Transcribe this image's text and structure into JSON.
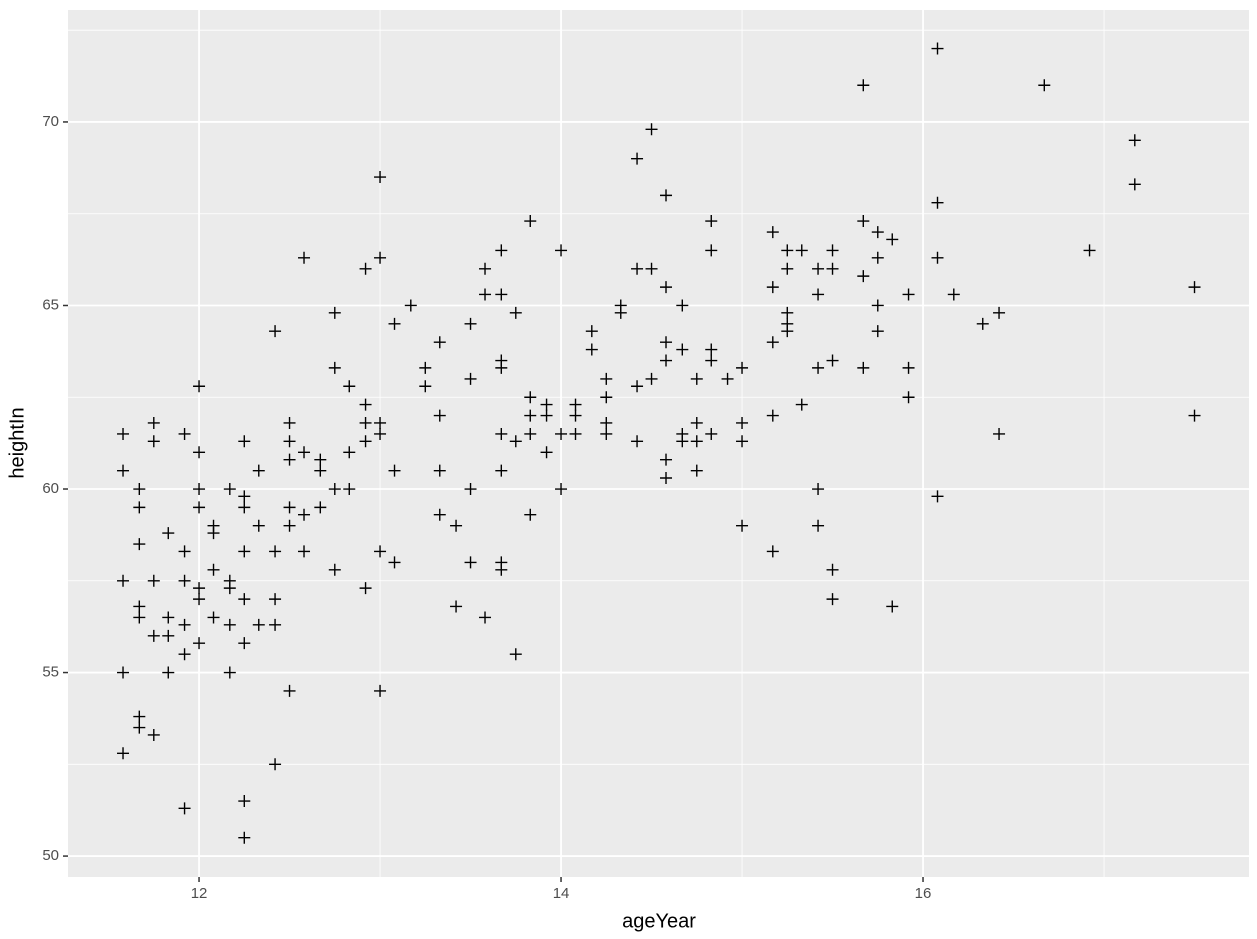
{
  "chart_data": {
    "type": "scatter",
    "x_label": "ageYear",
    "y_label": "heightIn",
    "x": [
      11.58,
      11.58,
      11.58,
      11.58,
      11.58,
      11.67,
      11.67,
      11.67,
      11.67,
      11.67,
      11.67,
      11.67,
      11.75,
      11.75,
      11.75,
      11.75,
      11.75,
      11.83,
      11.83,
      11.83,
      11.83,
      11.92,
      11.92,
      11.92,
      11.92,
      11.92,
      11.92,
      12.0,
      12.0,
      12.0,
      12.0,
      12.0,
      12.0,
      12.0,
      12.08,
      12.08,
      12.08,
      12.08,
      12.17,
      12.17,
      12.17,
      12.17,
      12.17,
      12.25,
      12.25,
      12.25,
      12.25,
      12.25,
      12.25,
      12.25,
      12.25,
      12.33,
      12.33,
      12.33,
      12.42,
      12.42,
      12.42,
      12.42,
      12.42,
      12.5,
      12.5,
      12.5,
      12.5,
      12.5,
      12.5,
      12.58,
      12.58,
      12.58,
      12.58,
      12.67,
      12.67,
      12.67,
      12.75,
      12.75,
      12.75,
      12.75,
      12.83,
      12.83,
      12.83,
      12.92,
      12.92,
      12.92,
      12.92,
      12.92,
      13.0,
      13.0,
      13.0,
      13.0,
      13.0,
      13.0,
      13.08,
      13.08,
      13.08,
      13.17,
      13.25,
      13.25,
      13.33,
      13.33,
      13.33,
      13.33,
      13.42,
      13.42,
      13.5,
      13.5,
      13.5,
      13.5,
      13.58,
      13.58,
      13.58,
      13.67,
      13.67,
      13.67,
      13.67,
      13.67,
      13.67,
      13.67,
      13.67,
      13.75,
      13.75,
      13.75,
      13.83,
      13.83,
      13.83,
      13.83,
      13.83,
      13.92,
      13.92,
      13.92,
      14.0,
      14.0,
      14.0,
      14.08,
      14.08,
      14.08,
      14.17,
      14.17,
      14.25,
      14.25,
      14.25,
      14.25,
      14.33,
      14.33,
      14.42,
      14.42,
      14.42,
      14.42,
      14.5,
      14.5,
      14.5,
      14.58,
      14.58,
      14.58,
      14.58,
      14.58,
      14.58,
      14.67,
      14.67,
      14.67,
      14.67,
      14.75,
      14.75,
      14.75,
      14.75,
      14.83,
      14.83,
      14.83,
      14.83,
      14.83,
      14.92,
      15.0,
      15.0,
      15.0,
      15.0,
      15.17,
      15.17,
      15.17,
      15.17,
      15.17,
      15.25,
      15.25,
      15.25,
      15.25,
      15.25,
      15.33,
      15.33,
      15.42,
      15.42,
      15.42,
      15.42,
      15.42,
      15.5,
      15.5,
      15.5,
      15.5,
      15.5,
      15.67,
      15.67,
      15.67,
      15.67,
      15.75,
      15.75,
      15.75,
      15.75,
      15.83,
      15.83,
      15.92,
      15.92,
      15.92,
      16.08,
      16.08,
      16.08,
      16.08,
      16.17,
      16.33,
      16.42,
      16.42,
      16.67,
      16.92,
      17.17,
      17.17,
      17.5,
      17.5
    ],
    "y": [
      61.5,
      60.5,
      57.5,
      55,
      52.8,
      60,
      59.5,
      58.5,
      56.8,
      56.5,
      53.8,
      53.5,
      61.8,
      61.3,
      57.5,
      56,
      53.3,
      58.8,
      56.5,
      56,
      55,
      61.5,
      58.3,
      57.5,
      56.3,
      55.5,
      51.3,
      62.8,
      61,
      60,
      59.5,
      57.3,
      57,
      55.8,
      59,
      58.8,
      57.8,
      56.5,
      60,
      57.5,
      57.3,
      56.3,
      55,
      61.3,
      59.8,
      59.5,
      58.3,
      57,
      55.8,
      51.5,
      50.5,
      60.5,
      59,
      56.3,
      64.3,
      58.3,
      57,
      56.3,
      52.5,
      61.8,
      61.3,
      60.8,
      59.5,
      59,
      54.5,
      66.3,
      61,
      59.3,
      58.3,
      60.8,
      60.5,
      59.5,
      64.8,
      63.3,
      60,
      57.8,
      62.8,
      61,
      60,
      66,
      62.3,
      61.8,
      61.3,
      57.3,
      68.5,
      66.3,
      61.8,
      61.5,
      58.3,
      54.5,
      64.5,
      60.5,
      58,
      65,
      63.3,
      62.8,
      64,
      62,
      60.5,
      59.3,
      59,
      56.8,
      64.5,
      63,
      60,
      58,
      66,
      65.3,
      56.5,
      66.5,
      65.3,
      63.5,
      63.3,
      61.5,
      60.5,
      58,
      57.8,
      64.8,
      61.3,
      55.5,
      67.3,
      62.5,
      62,
      61.5,
      59.3,
      62.3,
      62,
      61,
      66.5,
      61.5,
      60,
      62.3,
      62,
      61.5,
      64.3,
      63.8,
      63,
      62.5,
      61.8,
      61.5,
      65,
      64.8,
      69,
      66,
      62.8,
      61.3,
      69.8,
      66,
      63,
      68,
      65.5,
      64,
      63.5,
      60.8,
      60.3,
      65,
      63.8,
      61.5,
      61.3,
      63,
      61.8,
      61.3,
      60.5,
      67.3,
      66.5,
      63.8,
      63.5,
      61.5,
      63,
      63.3,
      61.8,
      61.3,
      59,
      67,
      65.5,
      64,
      62,
      58.3,
      66.5,
      66,
      64.8,
      64.5,
      64.3,
      66.5,
      62.3,
      66,
      65.3,
      63.3,
      60,
      59,
      66.5,
      66,
      63.5,
      57.8,
      57,
      71,
      67.3,
      65.8,
      63.3,
      67,
      66.3,
      65,
      64.3,
      66.8,
      56.8,
      65.3,
      63.3,
      62.5,
      72,
      67.8,
      66.3,
      59.8,
      65.3,
      64.5,
      64.8,
      61.5,
      71,
      66.5,
      69.5,
      68.3,
      65.5,
      62
    ],
    "xlim": [
      11.276,
      17.801
    ],
    "ylim": [
      49.43,
      73.05
    ],
    "xticks": [
      12,
      14,
      16
    ],
    "yticks": [
      50,
      55,
      60,
      65,
      70
    ],
    "x_minor_grid": [
      13,
      15,
      17
    ],
    "y_minor_grid": [
      52.5,
      57.5,
      62.5,
      67.5,
      72.5
    ],
    "grid": true,
    "color": "#000000",
    "panel_color": "#ebebeb"
  }
}
